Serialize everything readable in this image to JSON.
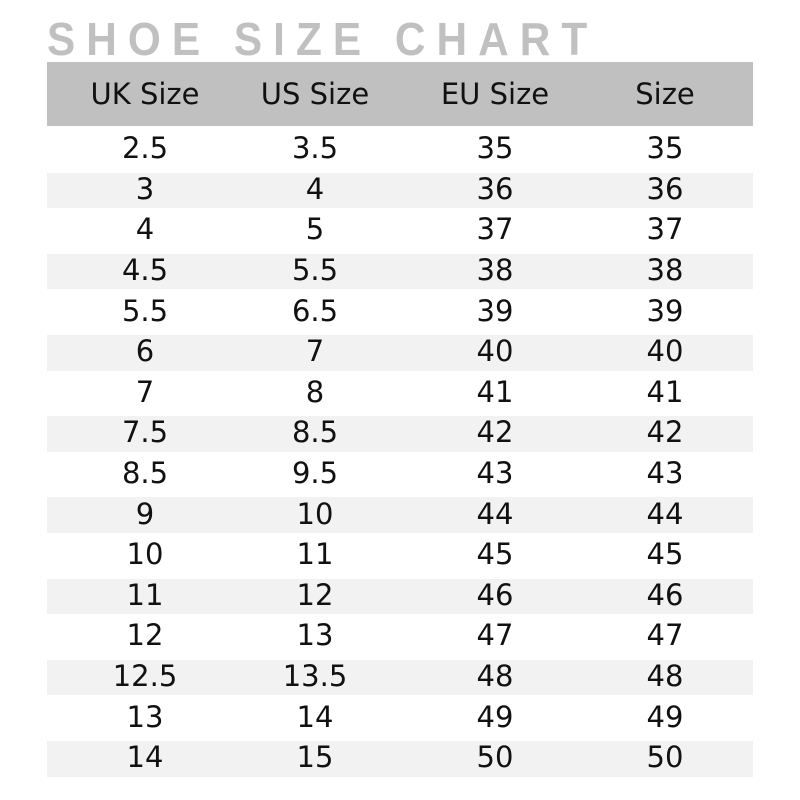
{
  "title": "SHOE SIZE CHART",
  "colors": {
    "header_bg": "#c0c0c0",
    "title": "#c0c0c0",
    "stripe": "#f2f2f2"
  },
  "headers": [
    "UK Size",
    "US Size",
    "EU Size",
    "Size"
  ],
  "rows": [
    [
      "2.5",
      "3.5",
      "35",
      "35"
    ],
    [
      "3",
      "4",
      "36",
      "36"
    ],
    [
      "4",
      "5",
      "37",
      "37"
    ],
    [
      "4.5",
      "5.5",
      "38",
      "38"
    ],
    [
      "5.5",
      "6.5",
      "39",
      "39"
    ],
    [
      "6",
      "7",
      "40",
      "40"
    ],
    [
      "7",
      "8",
      "41",
      "41"
    ],
    [
      "7.5",
      "8.5",
      "42",
      "42"
    ],
    [
      "8.5",
      "9.5",
      "43",
      "43"
    ],
    [
      "9",
      "10",
      "44",
      "44"
    ],
    [
      "10",
      "11",
      "45",
      "45"
    ],
    [
      "11",
      "12",
      "46",
      "46"
    ],
    [
      "12",
      "13",
      "47",
      "47"
    ],
    [
      "12.5",
      "13.5",
      "48",
      "48"
    ],
    [
      "13",
      "14",
      "49",
      "49"
    ],
    [
      "14",
      "15",
      "50",
      "50"
    ]
  ]
}
